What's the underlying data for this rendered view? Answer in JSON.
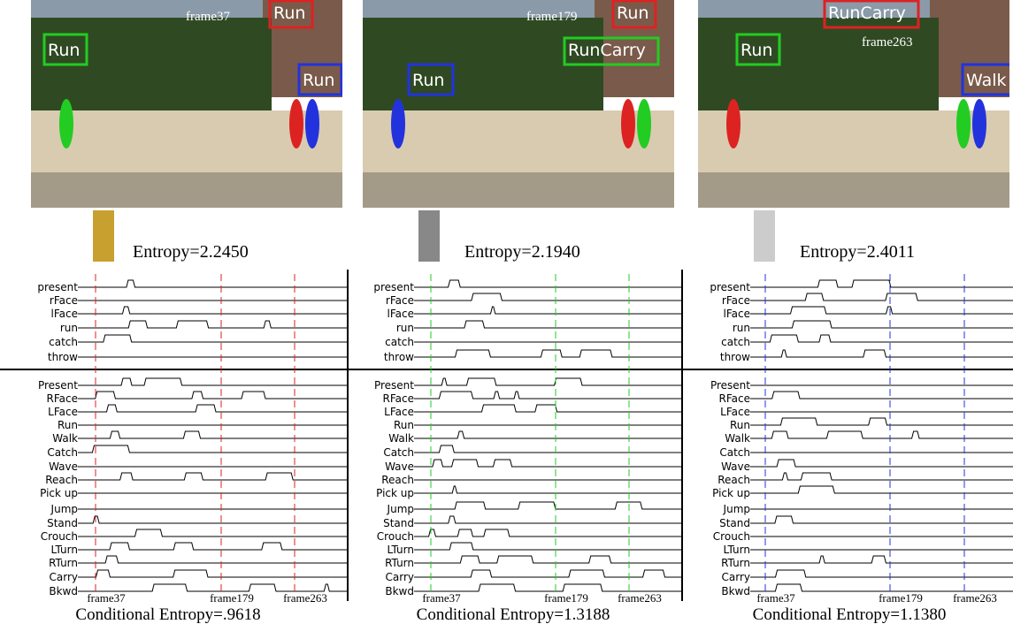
{
  "top_rows": [
    "present",
    "rFace",
    "lFace",
    "run",
    "catch",
    "throw"
  ],
  "bottom_rows": [
    "Present",
    "RFace",
    "LFace",
    "Run",
    "Walk",
    "Catch",
    "Wave",
    "Reach",
    "Pick up",
    "Jump",
    "Stand",
    "Crouch",
    "LTurn",
    "RTurn",
    "Carry",
    "Bkwd"
  ],
  "panels": [
    {
      "frame_label": "frame37",
      "boxes": [
        {
          "label": "Run",
          "color": "#22cc22"
        },
        {
          "label": "Run",
          "color": "#dd2222"
        },
        {
          "label": "Run",
          "color": "#2233dd"
        }
      ],
      "entropy": "Entropy=2.2450",
      "markers": [
        "frame37",
        "frame179",
        "frame263"
      ],
      "marker_color": "#dd2222",
      "conditional_entropy": "Conditional Entropy=.9618"
    },
    {
      "frame_label": "frame179",
      "boxes": [
        {
          "label": "Run",
          "color": "#2233dd"
        },
        {
          "label": "Run",
          "color": "#dd2222"
        },
        {
          "label": "RunCarry",
          "color": "#22cc22"
        }
      ],
      "entropy": "Entropy=2.1940",
      "markers": [
        "frame37",
        "frame179",
        "frame263"
      ],
      "marker_color": "#22cc22",
      "conditional_entropy": "Conditional Entropy=1.3188"
    },
    {
      "frame_label": "frame263",
      "boxes": [
        {
          "label": "RunCarry",
          "color": "#dd2222"
        },
        {
          "label": "Run",
          "color": "#22cc22"
        },
        {
          "label": "Walk",
          "color": "#2233dd"
        }
      ],
      "entropy": "Entropy=2.4011",
      "markers": [
        "frame37",
        "frame179",
        "frame263"
      ],
      "marker_color": "#2233dd",
      "conditional_entropy": "Conditional Entropy=1.1380"
    }
  ]
}
